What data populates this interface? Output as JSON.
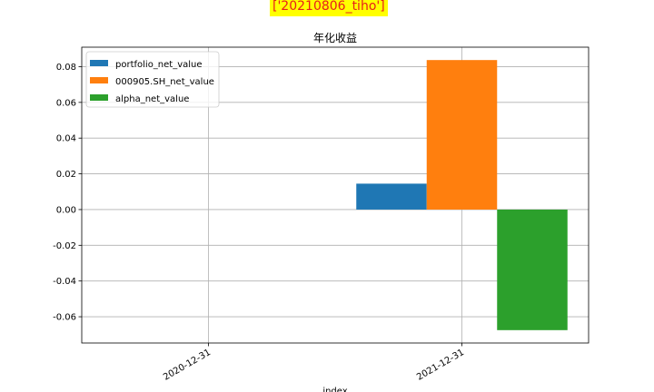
{
  "figure_title": "['20210806_tiho']",
  "chart_data": {
    "type": "bar",
    "title": "年化收益",
    "xlabel": "index",
    "ylabel": "",
    "categories": [
      "2020-12-31",
      "2021-12-31"
    ],
    "series": [
      {
        "name": "portfolio_net_value",
        "color": "#1f77b4",
        "values": [
          0,
          0.0145
        ]
      },
      {
        "name": "000905.SH_net_value",
        "color": "#ff7f0e",
        "values": [
          0,
          0.0837
        ]
      },
      {
        "name": "alpha_net_value",
        "color": "#2ca02c",
        "values": [
          0,
          -0.0675
        ]
      }
    ],
    "ylim": [
      -0.0747,
      0.0909
    ],
    "yticks": [
      0.08,
      0.06,
      0.04,
      0.02,
      0.0,
      -0.02,
      -0.04,
      -0.06
    ],
    "ytick_labels": [
      "0.08",
      "0.06",
      "0.04",
      "0.02",
      "0.00",
      "-0.02",
      "-0.04",
      "-0.06"
    ],
    "grid": true,
    "legend_position": "top-left"
  }
}
